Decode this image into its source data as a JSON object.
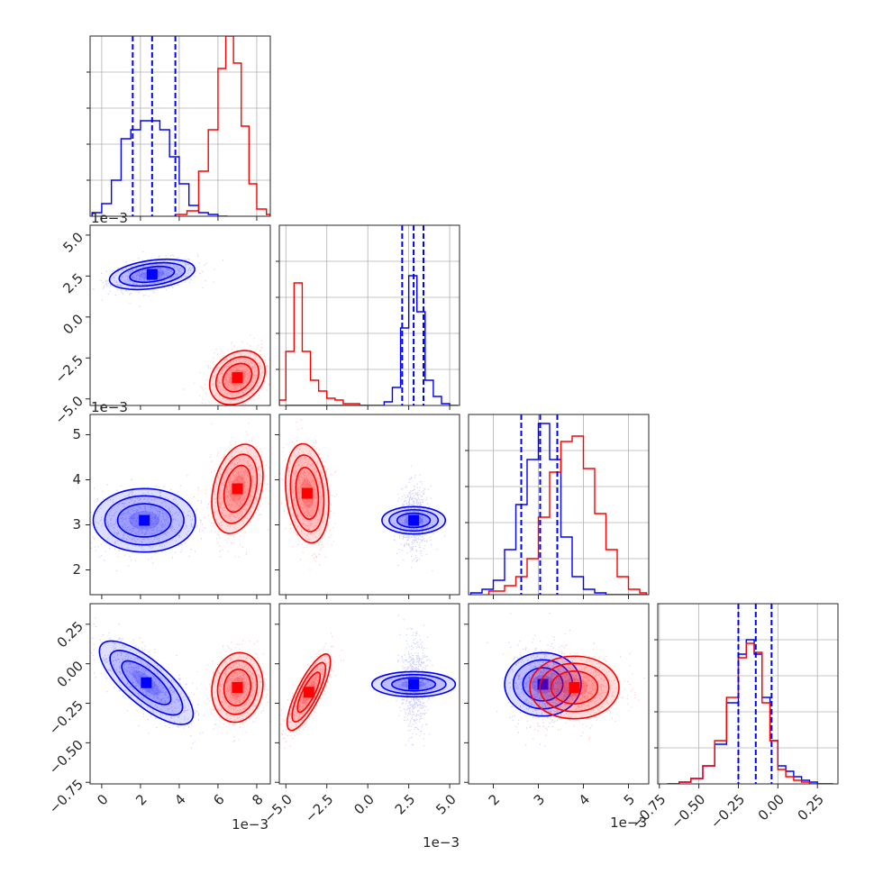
{
  "chart_data": {
    "type": "corner",
    "grid": true,
    "series_colors": {
      "blue": "#0000ff",
      "red": "#ff0000"
    },
    "parameters": [
      {
        "ticks": [
          0,
          2,
          4,
          6,
          8
        ],
        "range": [
          -0.6,
          8.7
        ],
        "ticklabels": [
          "0",
          "2",
          "4",
          "6",
          "8"
        ],
        "multiplier": "1e−3"
      },
      {
        "ticks": [
          -5.0,
          -2.5,
          0.0,
          2.5,
          5.0
        ],
        "range": [
          -5.4,
          5.6
        ],
        "ticklabels": [
          "−5.0",
          "−2.5",
          "0.0",
          "2.5",
          "5.0"
        ],
        "multiplier": "1e−3"
      },
      {
        "ticks": [
          2,
          3,
          4,
          5
        ],
        "range": [
          1.45,
          5.45
        ],
        "ticklabels": [
          "2",
          "3",
          "4",
          "5"
        ],
        "multiplier": "1e−3"
      },
      {
        "ticks": [
          -0.75,
          -0.5,
          -0.25,
          0.0,
          0.25
        ],
        "range": [
          -0.76,
          0.38
        ],
        "ticklabels": [
          "−0.75",
          "−0.50",
          "−0.25",
          "0.00",
          "0.25"
        ],
        "multiplier": ""
      }
    ],
    "hist_yticks": [
      [
        20,
        40,
        60,
        80
      ],
      [
        20,
        40,
        60,
        80
      ],
      [
        20,
        40,
        60,
        80
      ],
      [
        20,
        40,
        60,
        80
      ]
    ],
    "hist_ymax": [
      100,
      100,
      100,
      100
    ],
    "blue": {
      "means": [
        2.6,
        2.8,
        3.1,
        -0.15
      ],
      "sigmas": [
        1.0,
        0.35,
        0.3,
        0.1
      ],
      "quantiles": [
        [
          1.6,
          2.6,
          3.8
        ],
        [
          2.1,
          2.8,
          3.4
        ],
        [
          2.62,
          3.04,
          3.42
        ],
        [
          -0.25,
          -0.14,
          -0.04
        ]
      ],
      "histograms": [
        {
          "edges": [
            -0.5,
            0.0,
            0.5,
            1.0,
            1.5,
            2.0,
            2.5,
            3.0,
            3.5,
            4.0,
            4.5,
            5.0,
            5.5,
            6.0,
            6.5
          ],
          "counts": [
            2,
            7,
            20,
            43,
            48,
            53,
            53,
            48,
            33,
            18,
            6,
            2,
            1,
            0
          ]
        },
        {
          "edges": [
            -5.0,
            1.0,
            1.5,
            2.0,
            2.5,
            3.0,
            3.5,
            4.0,
            4.5,
            5.0,
            5.5
          ],
          "counts": [
            0,
            2,
            10,
            43,
            72,
            52,
            14,
            5,
            1,
            0
          ]
        },
        {
          "edges": [
            1.5,
            1.75,
            2.0,
            2.25,
            2.5,
            2.75,
            3.0,
            3.25,
            3.5,
            3.75,
            4.0,
            4.25,
            4.5,
            5.4
          ],
          "counts": [
            1,
            3,
            8,
            25,
            50,
            75,
            95,
            75,
            32,
            10,
            3,
            1,
            0
          ]
        },
        {
          "edges": [
            -0.7,
            -0.625,
            -0.55,
            -0.475,
            -0.4,
            -0.325,
            -0.25,
            -0.2,
            -0.15,
            -0.1,
            -0.05,
            0.0,
            0.05,
            0.1,
            0.15,
            0.2,
            0.25,
            0.3,
            0.35
          ],
          "counts": [
            0,
            1,
            3,
            10,
            22,
            45,
            72,
            80,
            72,
            48,
            24,
            10,
            7,
            4,
            2,
            1,
            0,
            0
          ]
        }
      ]
    },
    "red": {
      "means": [
        7.0,
        -3.7,
        3.8,
        -0.16
      ],
      "sigmas": [
        0.6,
        0.7,
        0.4,
        0.1
      ],
      "quantiles": [],
      "histograms": [
        {
          "edges": [
            3.8,
            4.4,
            5.0,
            5.5,
            6.0,
            6.4,
            6.8,
            7.2,
            7.6,
            8.0,
            8.5,
            8.7
          ],
          "counts": [
            1,
            3,
            25,
            48,
            82,
            100,
            85,
            50,
            18,
            4,
            1
          ]
        },
        {
          "edges": [
            -5.4,
            -5.0,
            -4.5,
            -4.0,
            -3.5,
            -3.0,
            -2.5,
            -2.0,
            -1.5,
            -1.0,
            -0.5,
            0.0
          ],
          "counts": [
            3,
            30,
            68,
            30,
            14,
            8,
            4,
            3,
            1,
            1,
            0
          ]
        },
        {
          "edges": [
            1.9,
            2.25,
            2.5,
            2.75,
            3.0,
            3.25,
            3.5,
            3.75,
            4.0,
            4.25,
            4.5,
            4.75,
            5.0,
            5.25,
            5.4
          ],
          "counts": [
            2,
            5,
            10,
            20,
            43,
            68,
            85,
            88,
            70,
            45,
            25,
            10,
            3,
            1
          ]
        },
        {
          "edges": [
            -0.7,
            -0.625,
            -0.55,
            -0.475,
            -0.4,
            -0.325,
            -0.25,
            -0.2,
            -0.15,
            -0.1,
            -0.05,
            0.0,
            0.05,
            0.1,
            0.15,
            0.2,
            0.25,
            0.3,
            0.35
          ],
          "counts": [
            0,
            1,
            3,
            10,
            24,
            48,
            70,
            78,
            73,
            45,
            24,
            8,
            4,
            2,
            1,
            0,
            0,
            0
          ]
        }
      ]
    },
    "pairs": [
      {
        "row": 1,
        "col": 0,
        "blue": {
          "center": [
            2.6,
            2.6
          ],
          "sigma": [
            1.0,
            0.42
          ],
          "rho": 0.35
        },
        "red": {
          "center": [
            7.0,
            -3.7
          ],
          "sigma": [
            0.65,
            0.75
          ],
          "rho": 0.25
        }
      },
      {
        "row": 2,
        "col": 0,
        "blue": {
          "center": [
            2.2,
            3.1
          ],
          "sigma": [
            1.2,
            0.32
          ],
          "rho": 0.0
        },
        "red": {
          "center": [
            7.0,
            3.8
          ],
          "sigma": [
            0.6,
            0.45
          ],
          "rho": 0.3
        }
      },
      {
        "row": 2,
        "col": 1,
        "blue": {
          "center": [
            2.8,
            3.1
          ],
          "sigma": [
            0.38,
            0.32
          ],
          "rho": 0.0
        },
        "red": {
          "center": [
            -3.7,
            3.7
          ],
          "sigma": [
            0.6,
            0.5
          ],
          "rho": -0.2
        }
      },
      {
        "row": 3,
        "col": 0,
        "blue": {
          "center": [
            2.3,
            -0.12
          ],
          "sigma": [
            1.1,
            0.12
          ],
          "rho": -0.75
        },
        "red": {
          "center": [
            7.0,
            -0.15
          ],
          "sigma": [
            0.6,
            0.1
          ],
          "rho": 0.1
        }
      },
      {
        "row": 3,
        "col": 1,
        "blue": {
          "center": [
            2.8,
            -0.13
          ],
          "sigma": [
            0.35,
            0.12
          ],
          "rho": 0.0
        },
        "red": {
          "center": [
            -3.6,
            -0.18
          ],
          "sigma": [
            0.6,
            0.11
          ],
          "rho": 0.8
        }
      },
      {
        "row": 3,
        "col": 2,
        "blue": {
          "center": [
            3.1,
            -0.13
          ],
          "sigma": [
            0.32,
            0.11
          ],
          "rho": 0.0
        },
        "red": {
          "center": [
            3.8,
            -0.15
          ],
          "sigma": [
            0.45,
            0.09
          ],
          "rho": 0.0
        }
      }
    ]
  }
}
